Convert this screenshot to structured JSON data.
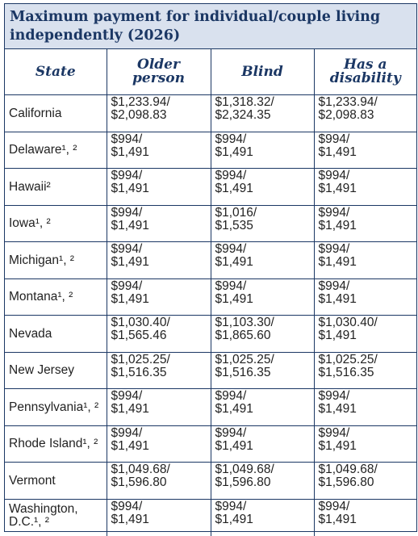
{
  "title": "Maximum payment for individual/couple living independently (2026)",
  "headers": [
    "State",
    "Older person",
    "Blind",
    "Has a disability"
  ],
  "rows": [
    {
      "state": "California",
      "older": "$1,233.94/\n$2,098.83",
      "blind": "$1,318.32/\n$2,324.35",
      "disability": "$1,233.94/\n$2,098.83"
    },
    {
      "state": "Delaware¹, ²",
      "older": "$994/\n$1,491",
      "blind": "$994/\n$1,491",
      "disability": "$994/\n$1,491"
    },
    {
      "state": "Hawaii²",
      "older": "$994/\n$1,491",
      "blind": "$994/\n$1,491",
      "disability": "$994/\n$1,491"
    },
    {
      "state": "Iowa¹, ²",
      "older": "$994/\n$1,491",
      "blind": "$1,016/\n$1,535",
      "disability": "$994/\n$1,491"
    },
    {
      "state": "Michigan¹, ²",
      "older": "$994/\n$1,491",
      "blind": "$994/\n$1,491",
      "disability": "$994/\n$1,491"
    },
    {
      "state": "Montana¹, ²",
      "older": "$994/\n$1,491",
      "blind": "$994/\n$1,491",
      "disability": "$994/\n$1,491"
    },
    {
      "state": "Nevada",
      "older": "$1,030.40/\n$1,565.46",
      "blind": "$1,103.30/\n$1,865.60",
      "disability": "$1,030.40/\n$1,491"
    },
    {
      "state": "New Jersey",
      "older": "$1,025.25/\n$1,516.35",
      "blind": "$1,025.25/\n$1,516.35",
      "disability": "$1,025.25/\n$1,516.35"
    },
    {
      "state": "Pennsylvania¹, ²",
      "older": "$994/\n$1,491",
      "blind": "$994/\n$1,491",
      "disability": "$994/\n$1,491"
    },
    {
      "state": "Rhode Island¹, ²",
      "older": "$994/\n$1,491",
      "blind": "$994/\n$1,491",
      "disability": "$994/\n$1,491"
    },
    {
      "state": "Vermont",
      "older": "$1,049.68/\n$1,596.80",
      "blind": "$1,049.68/\n$1,596.80",
      "disability": "$1,049.68/\n$1,596.80"
    },
    {
      "state": "Washington,\nD.C.¹, ²",
      "older": "$994/\n$1,491",
      "blind": "$994/\n$1,491",
      "disability": "$994/\n$1,491"
    }
  ]
}
